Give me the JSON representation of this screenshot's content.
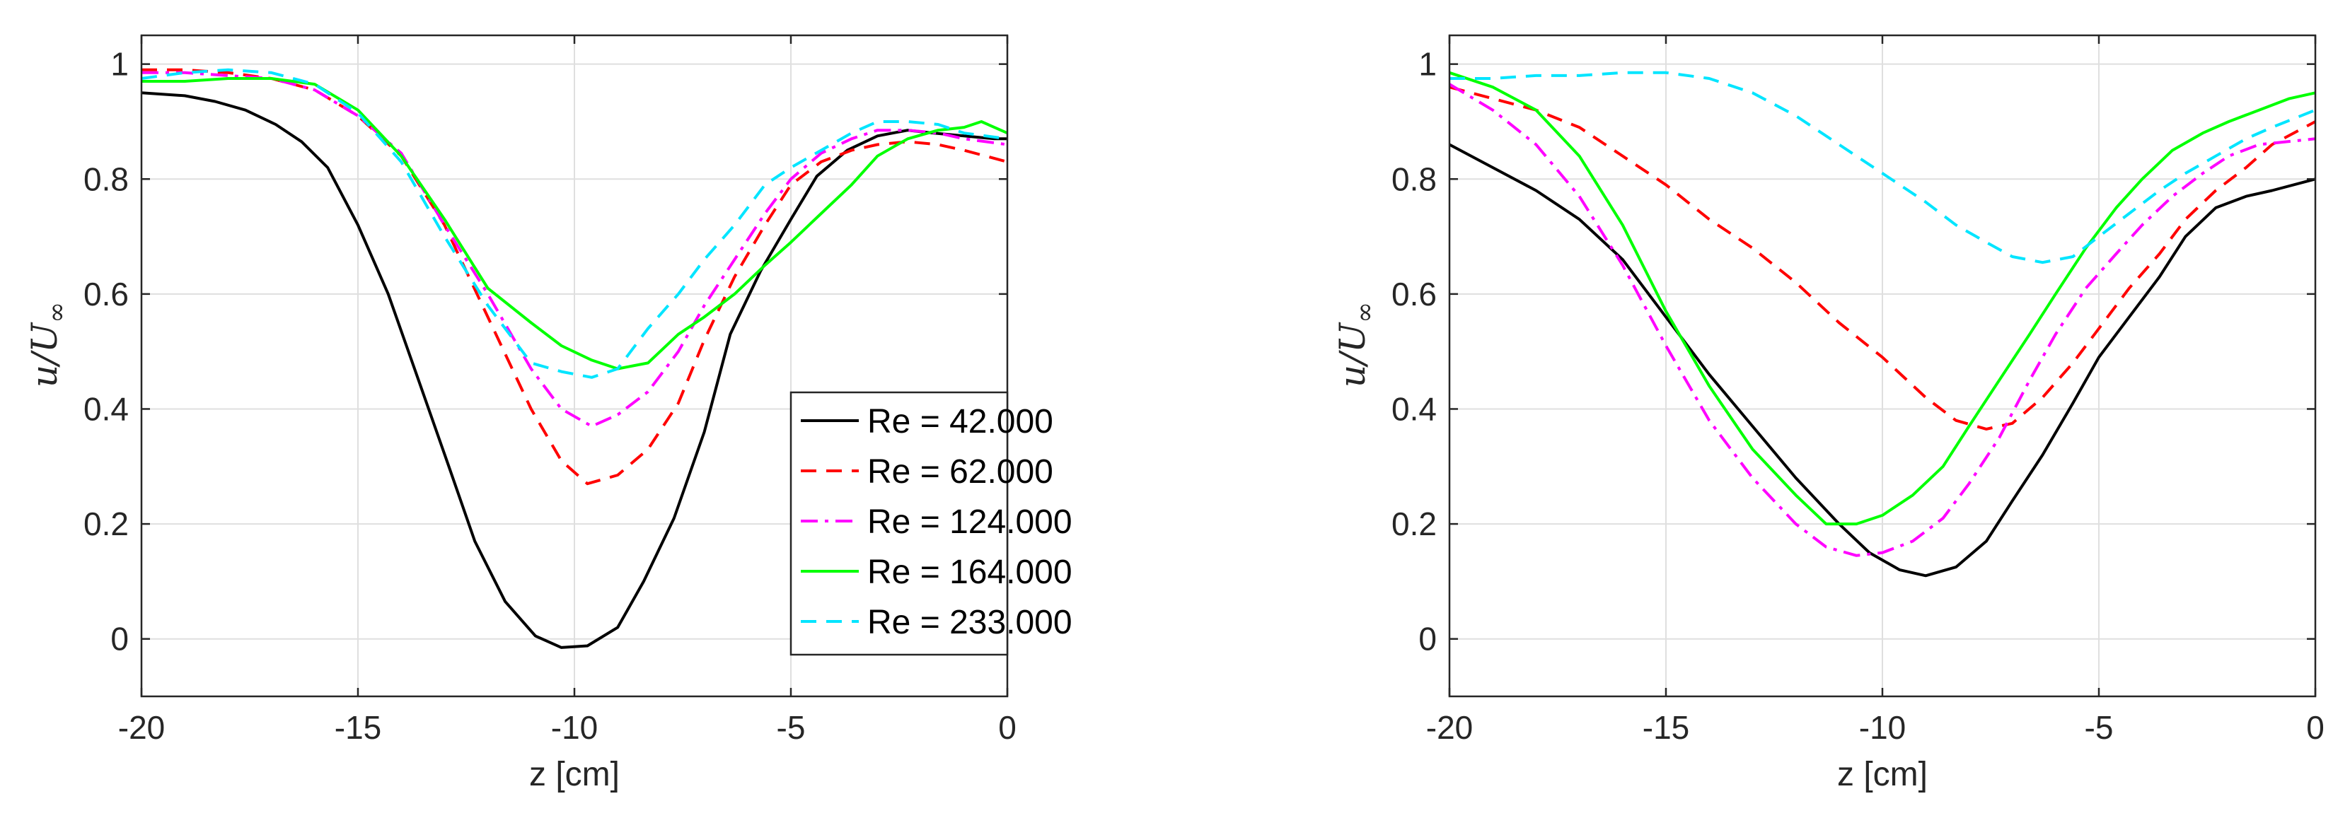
{
  "chart_data": [
    {
      "type": "line",
      "xlabel": "z [cm]",
      "ylabel_main": "u/U",
      "ylabel_sub": "∞",
      "xlim": [
        -20,
        0
      ],
      "ylim": [
        -0.1,
        1.05
      ],
      "xticks": [
        -20,
        -15,
        -10,
        -5,
        0
      ],
      "yticks": [
        0,
        0.2,
        0.4,
        0.6,
        0.8,
        1
      ],
      "grid": true,
      "legend": "lower-right",
      "series": [
        {
          "name": "Re = 42.000",
          "color": "#000000",
          "dash": "solid",
          "x": [
            -20,
            -19,
            -18.3,
            -17.6,
            -16.9,
            -16.3,
            -15.7,
            -15.0,
            -14.3,
            -13.6,
            -12.9,
            -12.3,
            -11.6,
            -10.9,
            -10.3,
            -9.7,
            -9.0,
            -8.4,
            -7.7,
            -7.0,
            -6.4,
            -5.7,
            -5.0,
            -4.4,
            -3.7,
            -3.0,
            -2.3,
            -1.7,
            -1.0,
            -0.3,
            0
          ],
          "y": [
            0.95,
            0.945,
            0.935,
            0.92,
            0.895,
            0.865,
            0.82,
            0.72,
            0.6,
            0.45,
            0.3,
            0.17,
            0.065,
            0.005,
            -0.015,
            -0.012,
            0.02,
            0.1,
            0.21,
            0.36,
            0.53,
            0.64,
            0.73,
            0.805,
            0.85,
            0.875,
            0.885,
            0.88,
            0.875,
            0.87,
            0.87
          ]
        },
        {
          "name": "Re = 62.000",
          "color": "#ff0000",
          "dash": "dashed",
          "x": [
            -20,
            -19,
            -18,
            -17,
            -16,
            -15,
            -14,
            -13,
            -12,
            -11,
            -10.3,
            -9.7,
            -9.0,
            -8.3,
            -7.6,
            -7.0,
            -6.3,
            -5.6,
            -5.0,
            -4.3,
            -3.6,
            -3.0,
            -2.3,
            -1.6,
            -1.0,
            0
          ],
          "y": [
            0.99,
            0.99,
            0.985,
            0.975,
            0.955,
            0.91,
            0.84,
            0.72,
            0.56,
            0.4,
            0.31,
            0.27,
            0.285,
            0.33,
            0.41,
            0.52,
            0.63,
            0.72,
            0.79,
            0.83,
            0.85,
            0.86,
            0.865,
            0.86,
            0.85,
            0.83
          ]
        },
        {
          "name": "Re = 124.000",
          "color": "#ff00ff",
          "dash": "dashdot",
          "x": [
            -20,
            -19,
            -18,
            -17,
            -16,
            -15,
            -14,
            -13,
            -12,
            -11,
            -10.3,
            -9.6,
            -9.0,
            -8.3,
            -7.6,
            -7.0,
            -6.3,
            -5.6,
            -5.0,
            -4.3,
            -3.6,
            -3.0,
            -2.3,
            -1.6,
            -1.0,
            0
          ],
          "y": [
            0.985,
            0.985,
            0.98,
            0.975,
            0.955,
            0.91,
            0.845,
            0.72,
            0.6,
            0.47,
            0.4,
            0.37,
            0.39,
            0.43,
            0.5,
            0.58,
            0.66,
            0.74,
            0.8,
            0.845,
            0.87,
            0.885,
            0.885,
            0.88,
            0.87,
            0.86
          ]
        },
        {
          "name": "Re = 164.000",
          "color": "#00ff00",
          "dash": "solid",
          "x": [
            -20,
            -19,
            -18,
            -17,
            -16,
            -15,
            -14,
            -13,
            -12,
            -11,
            -10.3,
            -9.6,
            -9.0,
            -8.3,
            -7.6,
            -7.0,
            -6.3,
            -5.6,
            -5.0,
            -4.3,
            -3.6,
            -3.0,
            -2.3,
            -1.6,
            -1.0,
            -0.6,
            0
          ],
          "y": [
            0.97,
            0.97,
            0.975,
            0.975,
            0.965,
            0.92,
            0.84,
            0.73,
            0.61,
            0.55,
            0.51,
            0.485,
            0.47,
            0.48,
            0.53,
            0.56,
            0.6,
            0.65,
            0.69,
            0.74,
            0.79,
            0.84,
            0.87,
            0.885,
            0.89,
            0.9,
            0.88
          ]
        },
        {
          "name": "Re = 233.000",
          "color": "#00e5ff",
          "dash": "dashed",
          "x": [
            -20,
            -19,
            -18,
            -17,
            -16,
            -15,
            -14,
            -13,
            -12,
            -11,
            -10.3,
            -9.6,
            -9.0,
            -8.3,
            -7.6,
            -7.0,
            -6.3,
            -5.6,
            -5.0,
            -4.3,
            -3.6,
            -3.0,
            -2.3,
            -1.6,
            -1.0,
            0
          ],
          "y": [
            0.975,
            0.985,
            0.99,
            0.985,
            0.965,
            0.915,
            0.83,
            0.7,
            0.58,
            0.48,
            0.465,
            0.455,
            0.47,
            0.54,
            0.6,
            0.66,
            0.72,
            0.79,
            0.82,
            0.85,
            0.88,
            0.9,
            0.9,
            0.895,
            0.88,
            0.87
          ]
        }
      ]
    },
    {
      "type": "line",
      "xlabel": "z [cm]",
      "ylabel_main": "u/U",
      "ylabel_sub": "∞",
      "xlim": [
        -20,
        0
      ],
      "ylim": [
        -0.1,
        1.05
      ],
      "xticks": [
        -20,
        -15,
        -10,
        -5,
        0
      ],
      "yticks": [
        0,
        0.2,
        0.4,
        0.6,
        0.8,
        1
      ],
      "grid": true,
      "legend": "none",
      "series": [
        {
          "name": "Re = 42.000",
          "color": "#000000",
          "dash": "solid",
          "x": [
            -20,
            -19,
            -18,
            -17,
            -16,
            -15,
            -14,
            -13,
            -12,
            -11,
            -10.3,
            -9.6,
            -9.0,
            -8.3,
            -7.6,
            -7.0,
            -6.3,
            -5.6,
            -5.0,
            -4.3,
            -3.6,
            -3.0,
            -2.3,
            -1.6,
            -1.0,
            0
          ],
          "y": [
            0.86,
            0.82,
            0.78,
            0.73,
            0.66,
            0.56,
            0.46,
            0.37,
            0.28,
            0.2,
            0.15,
            0.12,
            0.11,
            0.125,
            0.17,
            0.24,
            0.32,
            0.41,
            0.49,
            0.56,
            0.63,
            0.7,
            0.75,
            0.77,
            0.78,
            0.8
          ]
        },
        {
          "name": "Re = 62.000",
          "color": "#ff0000",
          "dash": "dashed",
          "x": [
            -20,
            -19,
            -18,
            -17,
            -16,
            -15,
            -14,
            -13,
            -12,
            -11,
            -10.0,
            -9.0,
            -8.3,
            -7.6,
            -7.0,
            -6.3,
            -5.6,
            -5.0,
            -4.3,
            -3.6,
            -3.0,
            -2.3,
            -1.6,
            -1.0,
            0
          ],
          "y": [
            0.96,
            0.94,
            0.92,
            0.89,
            0.84,
            0.79,
            0.73,
            0.68,
            0.62,
            0.55,
            0.49,
            0.42,
            0.38,
            0.365,
            0.375,
            0.42,
            0.48,
            0.54,
            0.61,
            0.67,
            0.73,
            0.78,
            0.82,
            0.86,
            0.9
          ]
        },
        {
          "name": "Re = 124.000",
          "color": "#ff00ff",
          "dash": "dashdot",
          "x": [
            -20,
            -19,
            -18,
            -17,
            -16,
            -15,
            -14,
            -13,
            -12,
            -11.3,
            -10.6,
            -10.0,
            -9.3,
            -8.6,
            -8.0,
            -7.3,
            -6.6,
            -6.0,
            -5.3,
            -4.6,
            -4.0,
            -3.3,
            -2.6,
            -2.0,
            -1.3,
            0
          ],
          "y": [
            0.965,
            0.92,
            0.86,
            0.77,
            0.65,
            0.51,
            0.38,
            0.28,
            0.2,
            0.16,
            0.145,
            0.15,
            0.17,
            0.21,
            0.27,
            0.35,
            0.45,
            0.53,
            0.61,
            0.67,
            0.72,
            0.77,
            0.81,
            0.84,
            0.86,
            0.87
          ]
        },
        {
          "name": "Re = 164.000",
          "color": "#00ff00",
          "dash": "solid",
          "x": [
            -20,
            -19,
            -18,
            -17,
            -16,
            -15,
            -14,
            -13,
            -12,
            -11.3,
            -10.6,
            -10.0,
            -9.3,
            -8.6,
            -8.0,
            -7.3,
            -6.6,
            -6.0,
            -5.3,
            -4.6,
            -4.0,
            -3.3,
            -2.6,
            -2.0,
            -1.3,
            -0.6,
            0
          ],
          "y": [
            0.985,
            0.96,
            0.92,
            0.84,
            0.72,
            0.57,
            0.44,
            0.33,
            0.25,
            0.2,
            0.2,
            0.215,
            0.25,
            0.3,
            0.37,
            0.45,
            0.53,
            0.6,
            0.68,
            0.75,
            0.8,
            0.85,
            0.88,
            0.9,
            0.92,
            0.94,
            0.95
          ]
        },
        {
          "name": "Re = 233.000",
          "color": "#00e5ff",
          "dash": "dashed",
          "x": [
            -20,
            -19,
            -18,
            -17,
            -16,
            -15,
            -14,
            -13,
            -12,
            -11,
            -10.0,
            -9.0,
            -8.3,
            -7.6,
            -7.0,
            -6.3,
            -5.6,
            -5.0,
            -4.3,
            -3.6,
            -3.0,
            -2.3,
            -1.6,
            -1.0,
            0
          ],
          "y": [
            0.975,
            0.975,
            0.98,
            0.98,
            0.985,
            0.985,
            0.975,
            0.95,
            0.91,
            0.86,
            0.81,
            0.76,
            0.72,
            0.69,
            0.665,
            0.655,
            0.665,
            0.7,
            0.74,
            0.78,
            0.81,
            0.84,
            0.87,
            0.89,
            0.92
          ]
        }
      ]
    }
  ]
}
